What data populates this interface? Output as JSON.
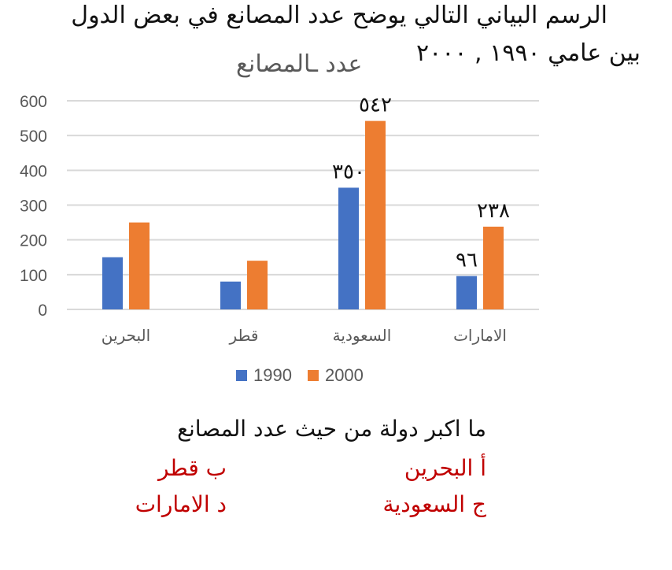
{
  "heading": {
    "line1": "الرسم البياني التالي يوضح  عدد المصانع في بعض الدول",
    "line2": "بين عامي ١٩٩٠ , ٢٠٠٠"
  },
  "chart_data": {
    "type": "bar",
    "title": "عدد ـالمصانع",
    "categories": [
      "البحرين",
      "قطر",
      "السعودية",
      "الامارات"
    ],
    "series": [
      {
        "name": "1990",
        "values": [
          150,
          80,
          350,
          96
        ],
        "color": "#4472c4"
      },
      {
        "name": "2000",
        "values": [
          250,
          140,
          542,
          238
        ],
        "color": "#ed7d31"
      }
    ],
    "ylim": [
      0,
      600
    ],
    "yticks": [
      "0",
      "100",
      "200",
      "300",
      "400",
      "500",
      "600"
    ],
    "grid": true,
    "legend_position": "bottom",
    "annotations": [
      {
        "text": "٥٤٢",
        "category": "السعودية",
        "series": "2000"
      },
      {
        "text": "٣٥٠",
        "category": "السعودية",
        "series": "1990"
      },
      {
        "text": "٢٣٨",
        "category": "الامارات",
        "series": "2000"
      },
      {
        "text": "٩٦",
        "category": "الامارات",
        "series": "1990"
      }
    ]
  },
  "question": {
    "text": "ما اكبر دولة من حيث عدد المصانع",
    "options": {
      "a": "أ البحرين",
      "b": "ب قطر",
      "c": "ج السعودية",
      "d": "د الامارات"
    }
  }
}
